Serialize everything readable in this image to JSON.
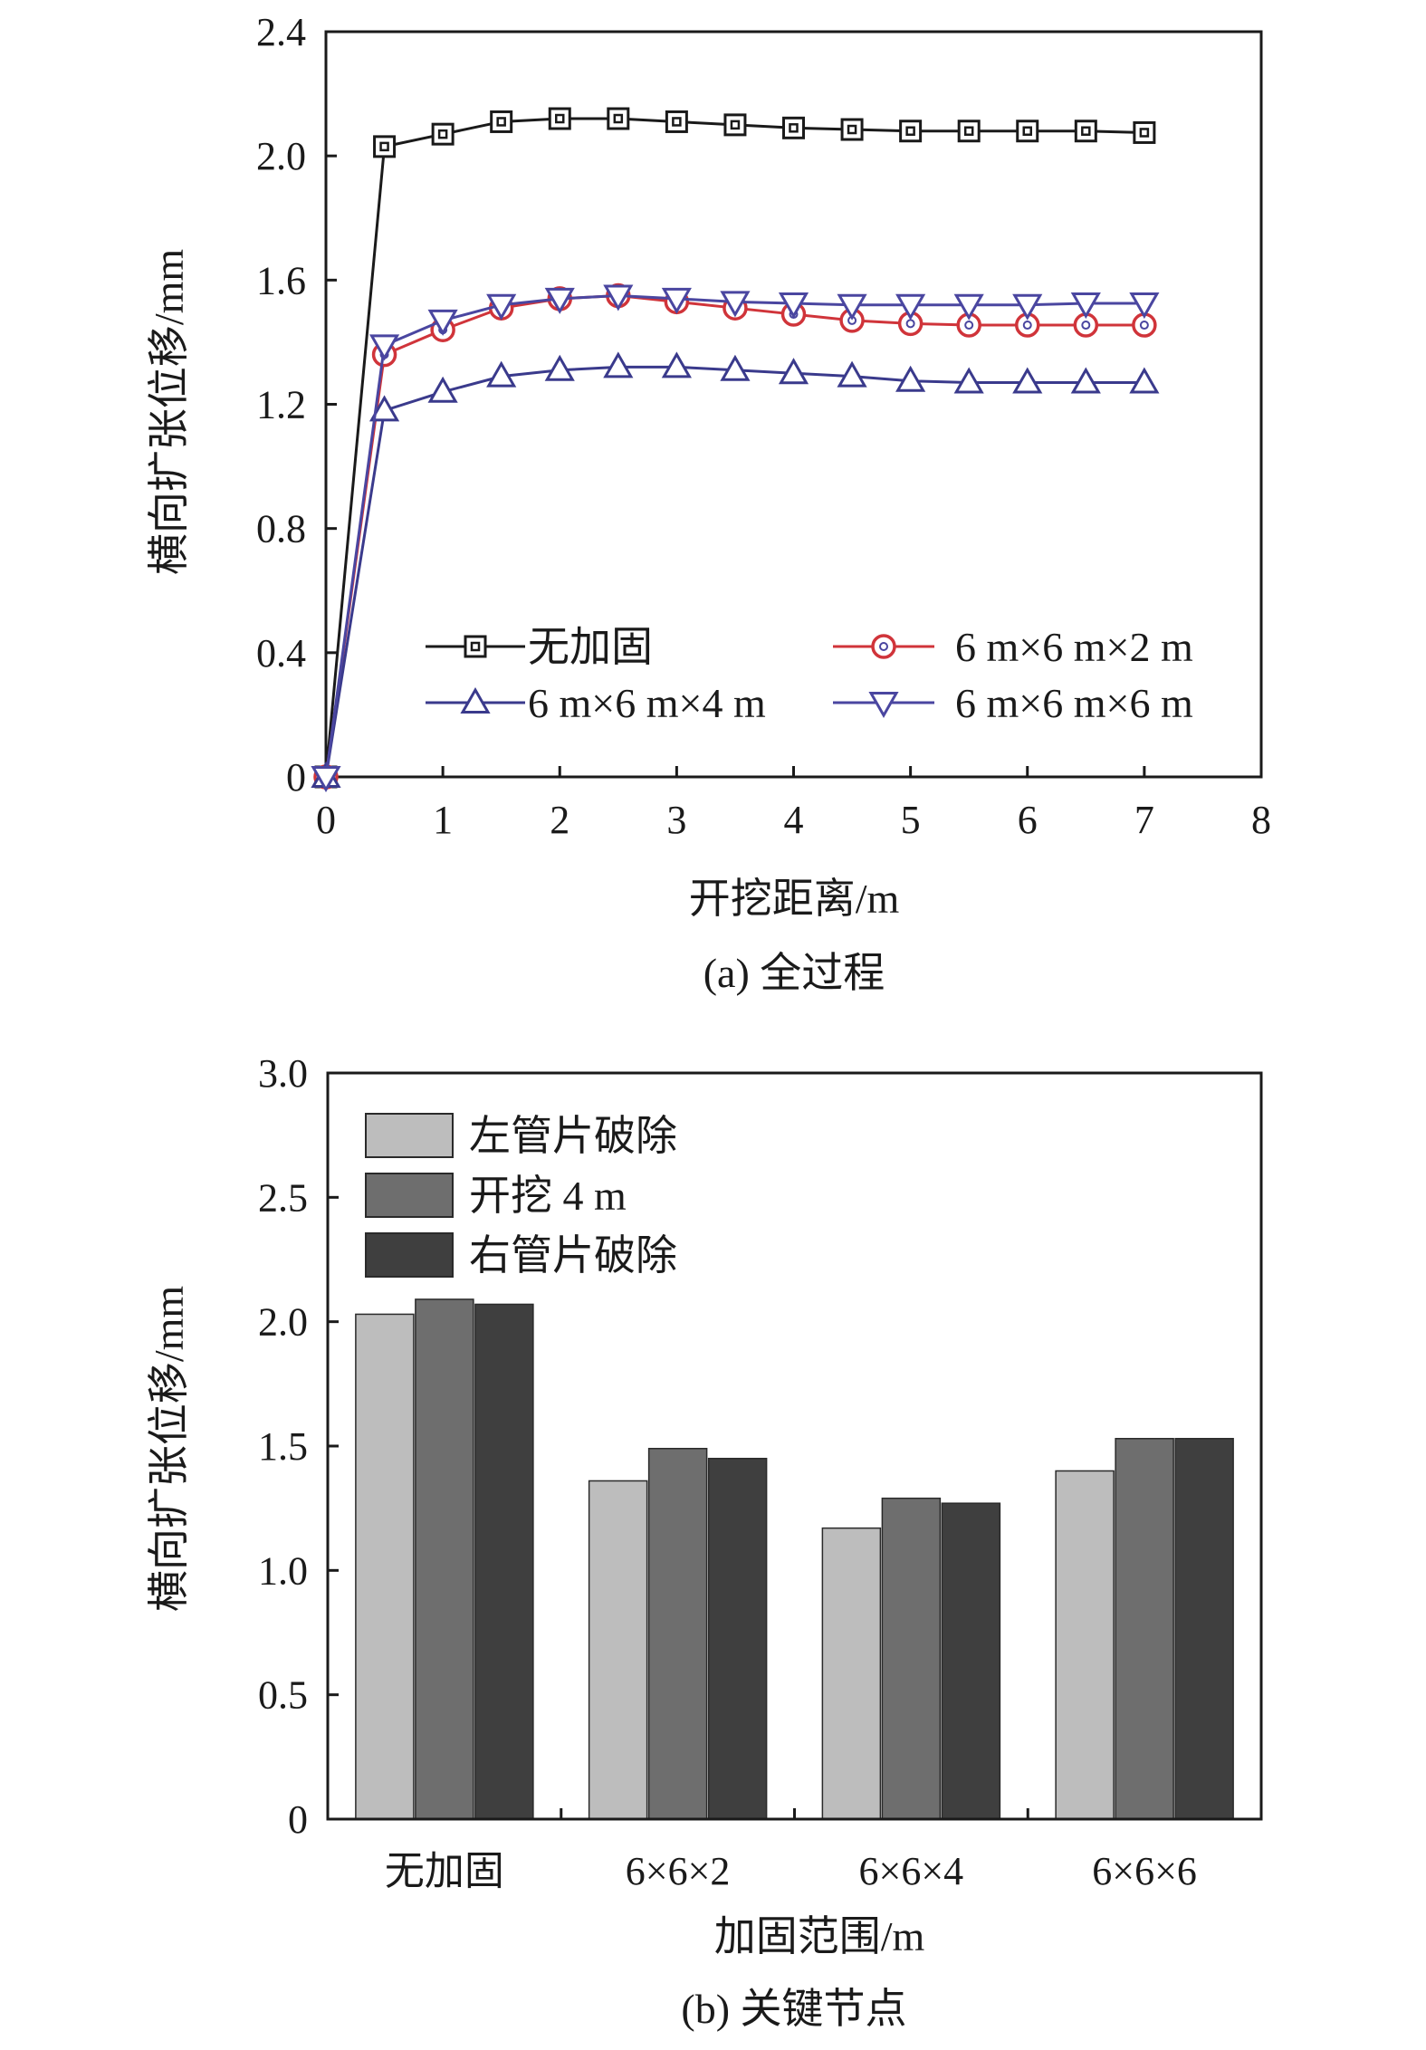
{
  "charts": [
    {
      "id": "a",
      "caption": "(a) 全过程",
      "chart_data": {
        "type": "line",
        "xlabel": "开挖距离/m",
        "ylabel": "横向扩张位移/mm",
        "xlim": [
          0,
          8
        ],
        "ylim": [
          0,
          2.4
        ],
        "xticks": [
          "0",
          "1",
          "2",
          "3",
          "4",
          "5",
          "6",
          "7",
          "8"
        ],
        "yticks": [
          "0",
          "0.4",
          "0.8",
          "1.2",
          "1.6",
          "2.0",
          "2.4"
        ],
        "grid": false,
        "legend_position": "bottom",
        "x": [
          0,
          0.5,
          1,
          1.5,
          2,
          2.5,
          3,
          3.5,
          4,
          4.5,
          5,
          5.5,
          6,
          6.5,
          7
        ],
        "series": [
          {
            "name": "无加固",
            "marker": "square",
            "color": "#1a1a1a",
            "values": [
              0,
              2.03,
              2.07,
              2.11,
              2.12,
              2.12,
              2.11,
              2.1,
              2.09,
              2.085,
              2.08,
              2.08,
              2.08,
              2.08,
              2.075
            ]
          },
          {
            "name": "6 m×6 m×2 m",
            "marker": "circle",
            "color": "#d0343a",
            "values": [
              0,
              1.36,
              1.44,
              1.51,
              1.54,
              1.55,
              1.53,
              1.51,
              1.49,
              1.47,
              1.46,
              1.455,
              1.455,
              1.455,
              1.455
            ]
          },
          {
            "name": "6 m×6 m×4 m",
            "marker": "triangle-up",
            "color": "#3a3a8c",
            "values": [
              0,
              1.18,
              1.24,
              1.29,
              1.31,
              1.32,
              1.32,
              1.31,
              1.3,
              1.29,
              1.275,
              1.27,
              1.27,
              1.27,
              1.27
            ]
          },
          {
            "name": "6 m×6 m×6 m",
            "marker": "triangle-down",
            "color": "#4a46a0",
            "values": [
              0,
              1.39,
              1.47,
              1.52,
              1.54,
              1.55,
              1.54,
              1.53,
              1.525,
              1.52,
              1.52,
              1.52,
              1.52,
              1.525,
              1.525
            ]
          }
        ]
      }
    },
    {
      "id": "b",
      "caption": "(b) 关键节点",
      "chart_data": {
        "type": "bar",
        "xlabel": "加固范围/m",
        "ylabel": "横向扩张位移/mm",
        "ylim": [
          0,
          3.0
        ],
        "yticks": [
          "0",
          "0.5",
          "1.0",
          "1.5",
          "2.0",
          "2.5",
          "3.0"
        ],
        "grid": false,
        "legend_position": "top-left",
        "categories": [
          "无加固",
          "6×6×2",
          "6×6×4",
          "6×6×6"
        ],
        "series": [
          {
            "name": "左管片破除",
            "color": "#bdbdbd",
            "values": [
              2.03,
              1.36,
              1.17,
              1.4
            ]
          },
          {
            "name": "开挖 4 m",
            "color": "#6e6e6e",
            "values": [
              2.09,
              1.49,
              1.29,
              1.53
            ]
          },
          {
            "name": "右管片破除",
            "color": "#3f3f3f",
            "values": [
              2.07,
              1.45,
              1.27,
              1.53
            ]
          }
        ]
      }
    }
  ]
}
